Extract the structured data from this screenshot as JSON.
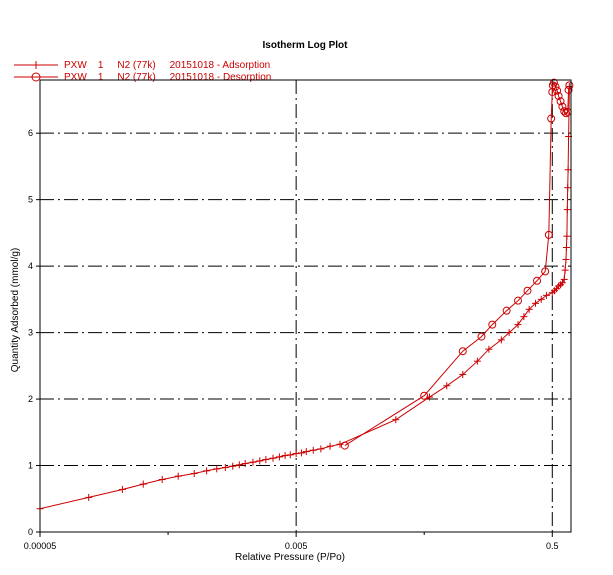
{
  "chart_data": {
    "type": "line",
    "title": "Isotherm Log Plot",
    "xlabel": "Relative Pressure (P/Po)",
    "ylabel": "Quantity Adsorbed (mmol/g)",
    "x_scale": "log",
    "xlim": [
      5e-05,
      0.7
    ],
    "ylim": [
      0,
      6.8
    ],
    "x_ticks": [
      {
        "value": 5e-05,
        "label": "0.00005"
      },
      {
        "value": 0.005,
        "label": "0.005"
      },
      {
        "value": 0.5,
        "label": "0.5"
      }
    ],
    "y_ticks": [
      {
        "value": 0,
        "label": "0"
      },
      {
        "value": 1,
        "label": "1"
      },
      {
        "value": 2,
        "label": "2"
      },
      {
        "value": 3,
        "label": "3"
      },
      {
        "value": 4,
        "label": "4"
      },
      {
        "value": 5,
        "label": "5"
      },
      {
        "value": 6,
        "label": "6"
      }
    ],
    "grid": true,
    "legend_position": "top-left",
    "color": "#cc0000",
    "series": [
      {
        "name": "PXW    1     N2 (77k)     20151018 - Adsorption",
        "marker": "plus",
        "points": [
          [
            5e-05,
            0.35
          ],
          [
            0.00012,
            0.52
          ],
          [
            0.00022,
            0.64
          ],
          [
            0.00032,
            0.72
          ],
          [
            0.00045,
            0.79
          ],
          [
            0.0006,
            0.84
          ],
          [
            0.0008,
            0.88
          ],
          [
            0.001,
            0.92
          ],
          [
            0.0012,
            0.95
          ],
          [
            0.0014,
            0.97
          ],
          [
            0.0016,
            0.99
          ],
          [
            0.0018,
            1.01
          ],
          [
            0.002,
            1.03
          ],
          [
            0.0023,
            1.05
          ],
          [
            0.0026,
            1.07
          ],
          [
            0.0029,
            1.09
          ],
          [
            0.0033,
            1.11
          ],
          [
            0.0037,
            1.13
          ],
          [
            0.0041,
            1.15
          ],
          [
            0.0045,
            1.16
          ],
          [
            0.005,
            1.18
          ],
          [
            0.0055,
            1.19
          ],
          [
            0.006,
            1.21
          ],
          [
            0.0068,
            1.23
          ],
          [
            0.0078,
            1.25
          ],
          [
            0.0092,
            1.29
          ],
          [
            0.011,
            1.32
          ],
          [
            0.03,
            1.69
          ],
          [
            0.055,
            2.03
          ],
          [
            0.075,
            2.2
          ],
          [
            0.1,
            2.37
          ],
          [
            0.13,
            2.57
          ],
          [
            0.16,
            2.75
          ],
          [
            0.2,
            2.89
          ],
          [
            0.23,
            3.0
          ],
          [
            0.27,
            3.12
          ],
          [
            0.3,
            3.24
          ],
          [
            0.33,
            3.35
          ],
          [
            0.37,
            3.44
          ],
          [
            0.41,
            3.5
          ],
          [
            0.45,
            3.56
          ],
          [
            0.5,
            3.6
          ],
          [
            0.52,
            3.63
          ],
          [
            0.54,
            3.66
          ],
          [
            0.56,
            3.7
          ],
          [
            0.58,
            3.72
          ],
          [
            0.6,
            3.75
          ],
          [
            0.62,
            3.8
          ],
          [
            0.63,
            3.94
          ],
          [
            0.64,
            4.1
          ],
          [
            0.645,
            4.28
          ],
          [
            0.65,
            4.45
          ],
          [
            0.655,
            4.85
          ],
          [
            0.66,
            5.18
          ],
          [
            0.665,
            5.45
          ],
          [
            0.67,
            5.95
          ],
          [
            0.68,
            6.7
          ]
        ]
      },
      {
        "name": "PXW    1     N2 (77k)     20151018 - Desorption",
        "marker": "circle",
        "points": [
          [
            0.68,
            6.72
          ],
          [
            0.67,
            6.65
          ],
          [
            0.66,
            6.32
          ],
          [
            0.64,
            6.3
          ],
          [
            0.62,
            6.33
          ],
          [
            0.6,
            6.4
          ],
          [
            0.58,
            6.48
          ],
          [
            0.56,
            6.56
          ],
          [
            0.545,
            6.64
          ],
          [
            0.53,
            6.7
          ],
          [
            0.515,
            6.76
          ],
          [
            0.505,
            6.72
          ],
          [
            0.5,
            6.62
          ],
          [
            0.49,
            6.22
          ],
          [
            0.47,
            4.47
          ],
          [
            0.44,
            3.92
          ],
          [
            0.38,
            3.78
          ],
          [
            0.32,
            3.63
          ],
          [
            0.27,
            3.48
          ],
          [
            0.22,
            3.33
          ],
          [
            0.17,
            3.12
          ],
          [
            0.14,
            2.94
          ],
          [
            0.1,
            2.72
          ],
          [
            0.05,
            2.05
          ],
          [
            0.012,
            1.3
          ]
        ]
      }
    ]
  }
}
